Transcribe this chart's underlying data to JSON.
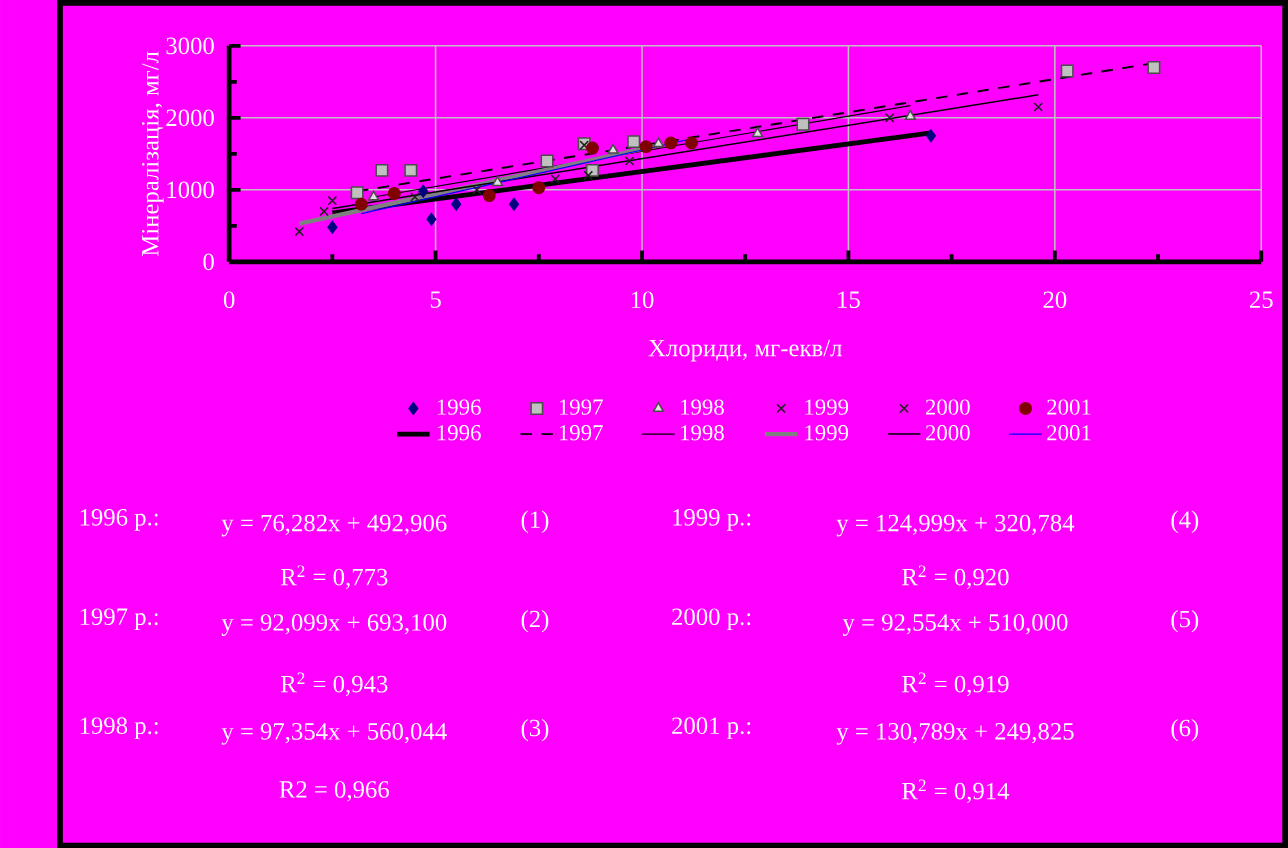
{
  "chart_data": {
    "type": "scatter",
    "xlabel": "Хлориди, мг-екв/л",
    "ylabel": "Мінералізація, мг/л",
    "xlim": [
      0,
      25
    ],
    "ylim": [
      0,
      3000
    ],
    "xticks": [
      0,
      5,
      10,
      15,
      20,
      25
    ],
    "yticks": [
      0,
      1000,
      2000,
      3000
    ],
    "grid": true,
    "legend": "bottom",
    "series": [
      {
        "name": "1996",
        "marker": "diamond",
        "color": "#000080",
        "x": [
          2.5,
          4.7,
          4.9,
          5.5,
          6.9,
          17.0
        ],
        "values": [
          480,
          980,
          590,
          800,
          800,
          1750
        ]
      },
      {
        "name": "1997",
        "marker": "square",
        "color": "#c0c0c0",
        "x": [
          3.1,
          3.7,
          4.4,
          7.7,
          8.6,
          8.8,
          9.8,
          13.9,
          20.3,
          22.4
        ],
        "values": [
          960,
          1270,
          1270,
          1400,
          1640,
          1270,
          1670,
          1910,
          2650,
          2700
        ]
      },
      {
        "name": "1998",
        "marker": "triangle",
        "color": "#e0e0e0",
        "x": [
          3.5,
          6.5,
          9.3,
          10.4,
          12.8,
          16.5
        ],
        "values": [
          900,
          1100,
          1550,
          1640,
          1780,
          2020
        ]
      },
      {
        "name": "1999",
        "marker": "cross",
        "color": "#202020",
        "x": [
          1.7,
          2.3,
          4.5,
          7.9,
          8.6,
          9.7
        ],
        "values": [
          420,
          700,
          900,
          1150,
          1620,
          1400
        ]
      },
      {
        "name": "2000",
        "marker": "cross",
        "color": "#202020",
        "x": [
          2.5,
          6.0,
          8.7,
          16.0,
          19.6
        ],
        "values": [
          850,
          1000,
          1200,
          2000,
          2150
        ]
      },
      {
        "name": "2001",
        "marker": "circle",
        "color": "#800000",
        "x": [
          3.2,
          4.0,
          6.3,
          7.5,
          8.8,
          10.1,
          10.7,
          11.2
        ],
        "values": [
          800,
          950,
          920,
          1030,
          1580,
          1600,
          1650,
          1650
        ]
      },
      {
        "name": "1996",
        "type": "line",
        "line_style": "solid",
        "color": "#000000",
        "x": [
          2.5,
          17.0
        ],
        "values": [
          680,
          1790
        ]
      },
      {
        "name": "1997",
        "type": "line",
        "line_style": "dashed",
        "color": "#000000",
        "x": [
          3.1,
          22.4
        ],
        "values": [
          980,
          2760
        ]
      },
      {
        "name": "1998",
        "type": "line",
        "line_style": "solid",
        "color": "#000000",
        "x": [
          3.5,
          16.5
        ],
        "values": [
          900,
          2170
        ]
      },
      {
        "name": "1999",
        "type": "line",
        "line_style": "solid",
        "color": "#808080",
        "x": [
          1.7,
          10.5
        ],
        "values": [
          530,
          1630
        ]
      },
      {
        "name": "2000",
        "type": "line",
        "line_style": "solid",
        "color": "#000000",
        "x": [
          2.5,
          19.6
        ],
        "values": [
          740,
          2320
        ]
      },
      {
        "name": "2001",
        "type": "line",
        "line_style": "solid",
        "color": "#0000ff",
        "x": [
          3.2,
          11.2
        ],
        "values": [
          670,
          1710
        ]
      }
    ],
    "annotations": [
      "1996 р.:",
      "y = 76,282x + 492,906",
      "(1)",
      "R$^{2}$ = 0,773",
      "1997 р.:",
      "y = 92,099x + 693,100",
      "(2)",
      "R$^{2}$ = 0,943",
      "1998 р.:",
      "y = 97,354x + 560,044",
      "(3)",
      "R2 = 0,966",
      "1999 р.:",
      "y = 124,999x + 320,784",
      "(4)",
      "R$^{2}$ = 0,920",
      "2000 р.:",
      "y = 92,554x + 510,000",
      "(5)",
      "R$^{2}$ = 0,919",
      "2001 р.:",
      "y = 130,789x + 249,825",
      "(6)",
      "R$^{2}$ = 0,914"
    ]
  }
}
